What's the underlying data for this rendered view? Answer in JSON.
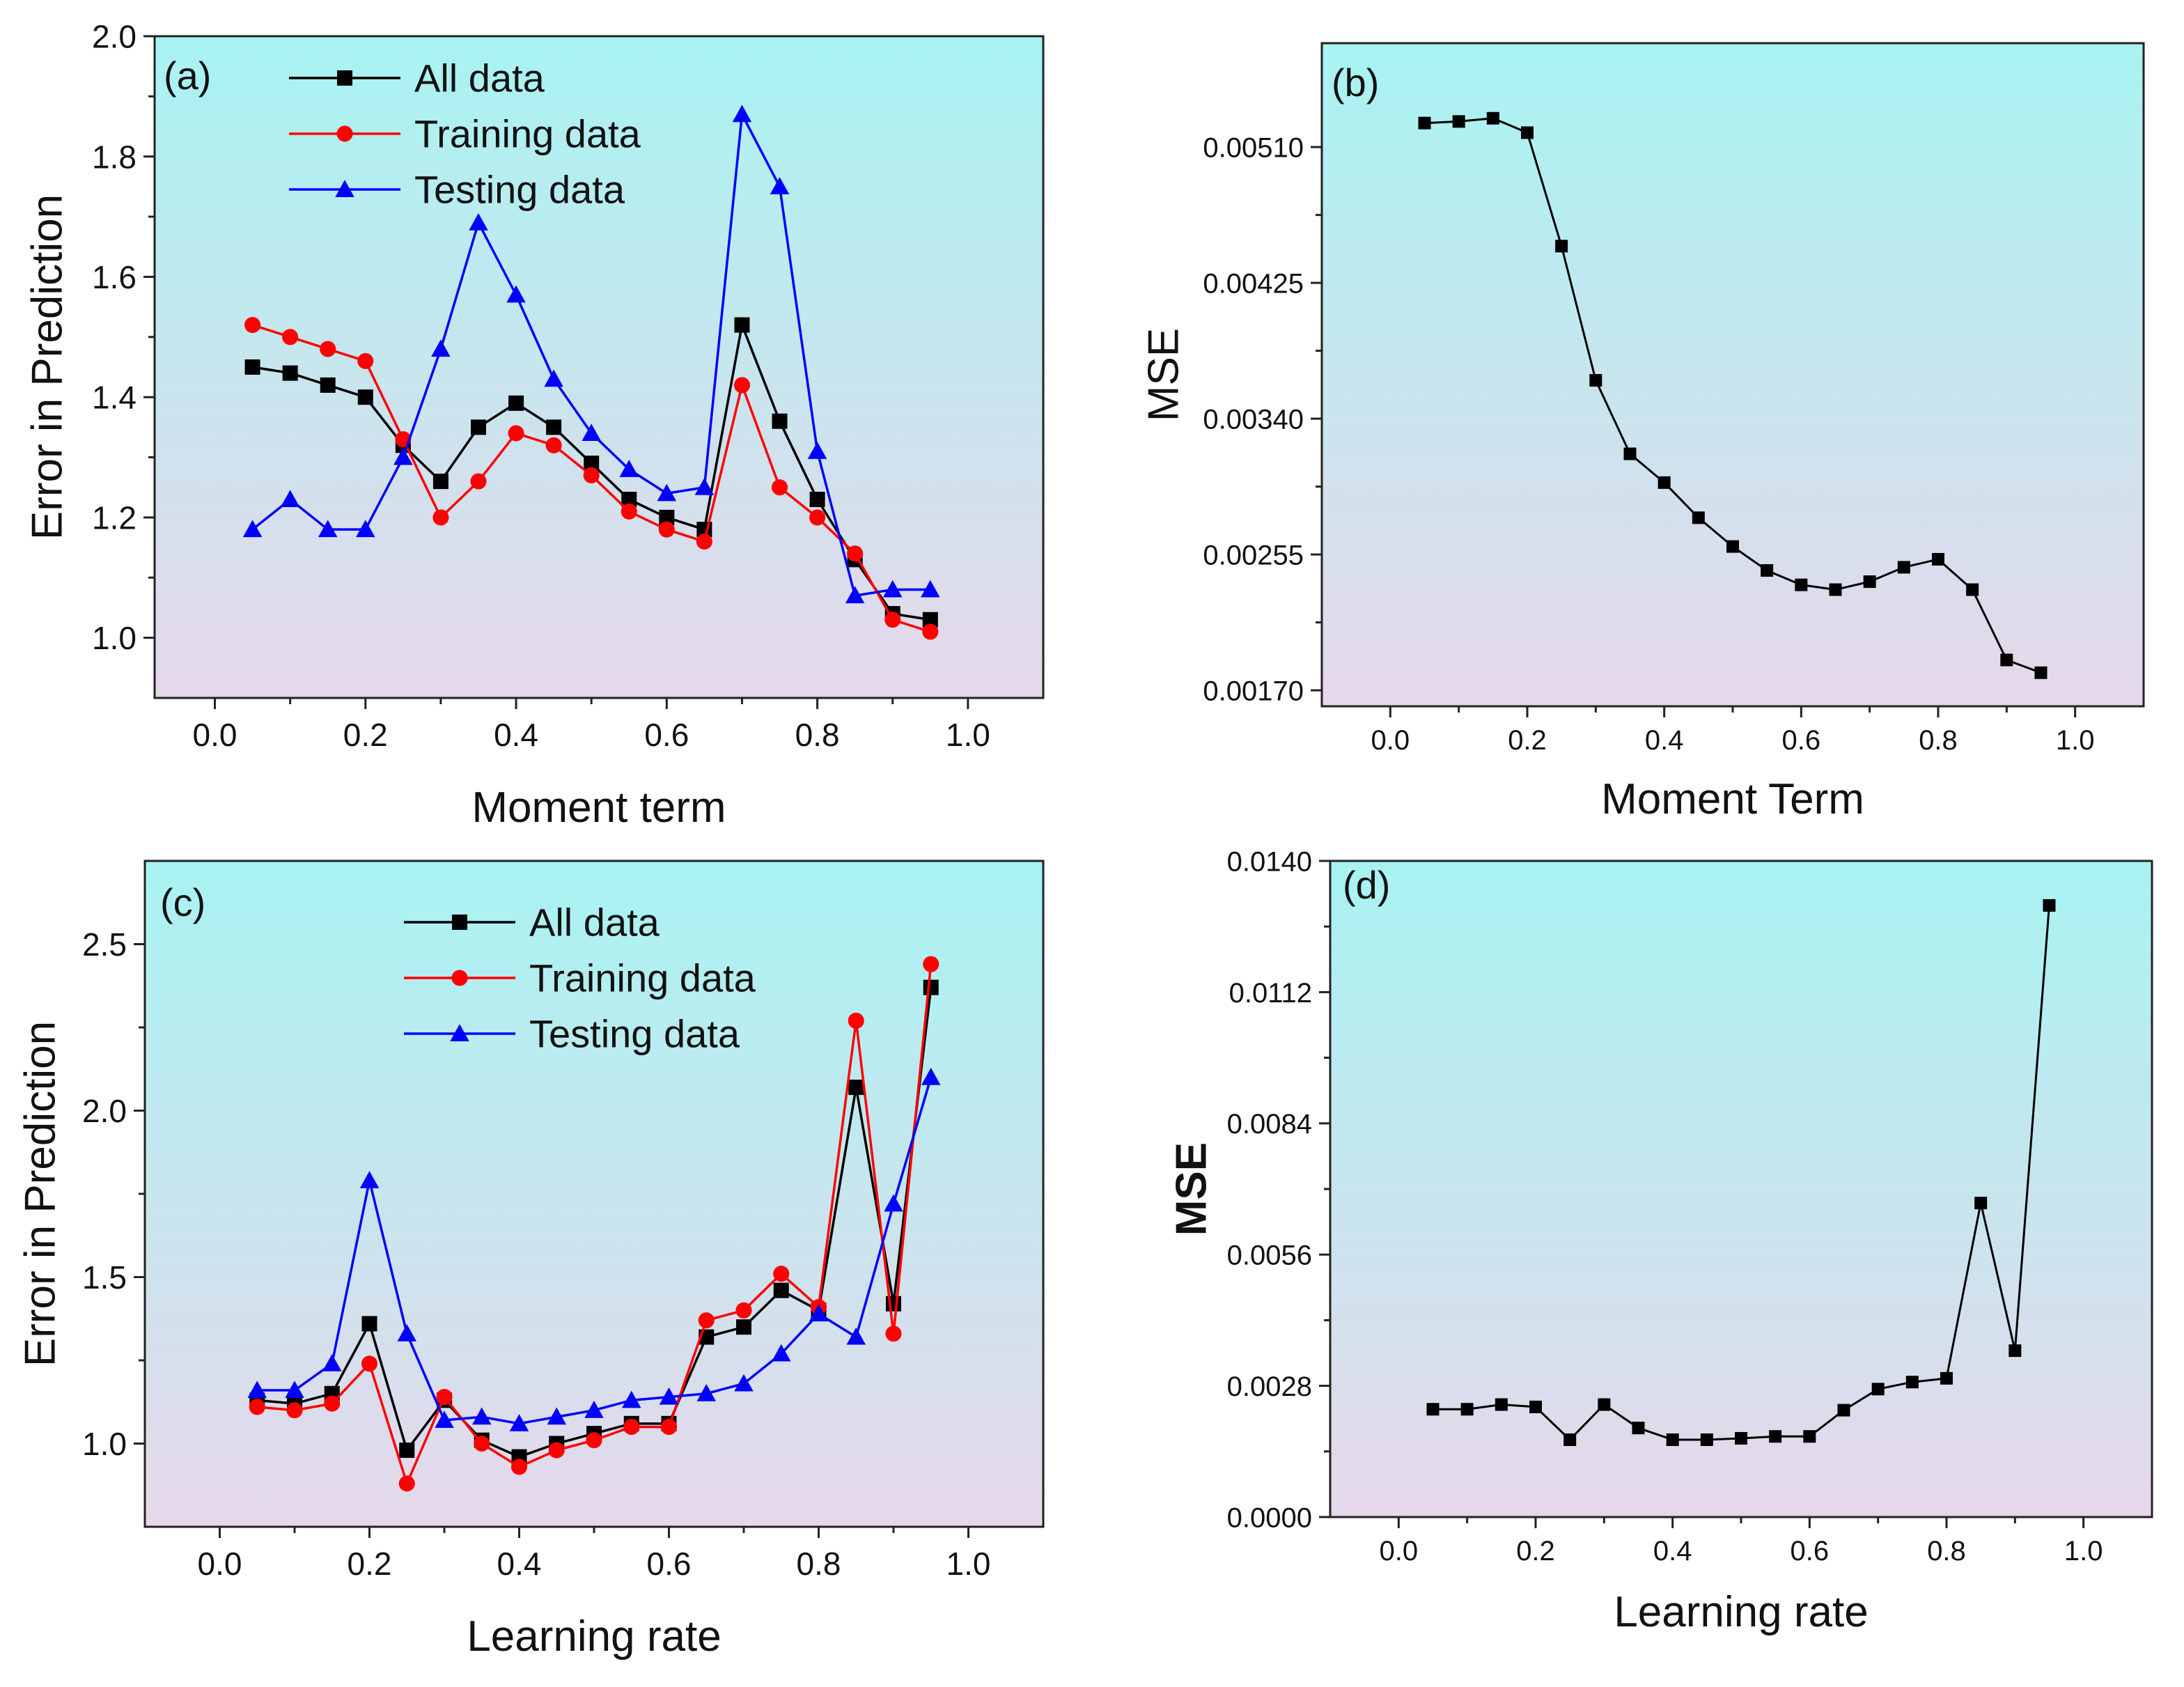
{
  "colors": {
    "bg_top": "#a8f3f2",
    "bg_bottom": "#e6d8ea",
    "all": "#000000",
    "train": "#ff0000",
    "test": "#0000ff"
  },
  "chart_data": [
    {
      "id": "a",
      "type": "line",
      "panel_label": "(a)",
      "xlabel": "Moment term",
      "ylabel": "Error in Prediction",
      "xlim": [
        -0.08,
        1.1
      ],
      "ylim": [
        0.9,
        2.0
      ],
      "xticks": [
        "0.0",
        "0.2",
        "0.4",
        "0.6",
        "0.8",
        "1.0"
      ],
      "yticks": [
        "1.0",
        "1.2",
        "1.4",
        "1.6",
        "1.8",
        "2.0"
      ],
      "legend_position": "top-center",
      "x": [
        0.05,
        0.1,
        0.15,
        0.2,
        0.25,
        0.3,
        0.35,
        0.4,
        0.45,
        0.5,
        0.55,
        0.6,
        0.65,
        0.7,
        0.75,
        0.8,
        0.85,
        0.9,
        0.95
      ],
      "series": [
        {
          "name": "All data",
          "color_key": "all",
          "marker": "square",
          "values": [
            1.45,
            1.44,
            1.42,
            1.4,
            1.32,
            1.26,
            1.35,
            1.39,
            1.35,
            1.29,
            1.23,
            1.2,
            1.18,
            1.52,
            1.36,
            1.23,
            1.13,
            1.04,
            1.03
          ]
        },
        {
          "name": "Training data",
          "color_key": "train",
          "marker": "circle",
          "values": [
            1.52,
            1.5,
            1.48,
            1.46,
            1.33,
            1.2,
            1.26,
            1.34,
            1.32,
            1.27,
            1.21,
            1.18,
            1.16,
            1.42,
            1.25,
            1.2,
            1.14,
            1.03,
            1.01
          ]
        },
        {
          "name": "Testing data",
          "color_key": "test",
          "marker": "triangle",
          "values": [
            1.18,
            1.23,
            1.18,
            1.18,
            1.3,
            1.48,
            1.69,
            1.57,
            1.43,
            1.34,
            1.28,
            1.24,
            1.25,
            1.87,
            1.75,
            1.31,
            1.07,
            1.08,
            1.08
          ]
        }
      ]
    },
    {
      "id": "b",
      "type": "line",
      "panel_label": "(b)",
      "xlabel": "Moment Term",
      "ylabel": "MSE",
      "xlim": [
        -0.1,
        1.1
      ],
      "ylim": [
        0.0016,
        0.00575
      ],
      "xticks": [
        "0.0",
        "0.2",
        "0.4",
        "0.6",
        "0.8",
        "1.0"
      ],
      "yticks": [
        "0.00170",
        "0.00255",
        "0.00340",
        "0.00425",
        "0.00510"
      ],
      "x": [
        0.05,
        0.1,
        0.15,
        0.2,
        0.25,
        0.3,
        0.35,
        0.4,
        0.45,
        0.5,
        0.55,
        0.6,
        0.65,
        0.7,
        0.75,
        0.8,
        0.85,
        0.9,
        0.95
      ],
      "series": [
        {
          "name": "MSE",
          "color_key": "all",
          "marker": "square",
          "values": [
            0.00525,
            0.00526,
            0.00528,
            0.00519,
            0.00448,
            0.00364,
            0.00318,
            0.003,
            0.00278,
            0.0026,
            0.00245,
            0.00236,
            0.00233,
            0.00238,
            0.00247,
            0.00252,
            0.00233,
            0.00189,
            0.00181
          ]
        }
      ]
    },
    {
      "id": "c",
      "type": "line",
      "panel_label": "(c)",
      "xlabel": "Learning rate",
      "ylabel": "Error in Prediction",
      "xlim": [
        -0.1,
        1.1
      ],
      "ylim": [
        0.75,
        2.75
      ],
      "xticks": [
        "0.0",
        "0.2",
        "0.4",
        "0.6",
        "0.8",
        "1.0"
      ],
      "yticks": [
        "1.0",
        "1.5",
        "2.0",
        "2.5"
      ],
      "legend_position": "top-center",
      "x": [
        0.05,
        0.1,
        0.15,
        0.2,
        0.25,
        0.3,
        0.35,
        0.4,
        0.45,
        0.5,
        0.55,
        0.6,
        0.65,
        0.7,
        0.75,
        0.8,
        0.85,
        0.9,
        0.95
      ],
      "series": [
        {
          "name": "All data",
          "color_key": "all",
          "marker": "square",
          "values": [
            1.13,
            1.12,
            1.15,
            1.36,
            0.98,
            1.13,
            1.01,
            0.96,
            1.0,
            1.03,
            1.06,
            1.06,
            1.32,
            1.35,
            1.46,
            1.4,
            2.07,
            1.42,
            2.37
          ]
        },
        {
          "name": "Training data",
          "color_key": "train",
          "marker": "circle",
          "values": [
            1.11,
            1.1,
            1.12,
            1.24,
            0.88,
            1.14,
            1.0,
            0.93,
            0.98,
            1.01,
            1.05,
            1.05,
            1.37,
            1.4,
            1.51,
            1.41,
            2.27,
            1.33,
            2.44
          ]
        },
        {
          "name": "Testing data",
          "color_key": "test",
          "marker": "triangle",
          "values": [
            1.16,
            1.16,
            1.24,
            1.79,
            1.33,
            1.07,
            1.08,
            1.06,
            1.08,
            1.1,
            1.13,
            1.14,
            1.15,
            1.18,
            1.27,
            1.39,
            1.32,
            1.72,
            2.1
          ]
        }
      ]
    },
    {
      "id": "d",
      "type": "line",
      "panel_label": "(d)",
      "xlabel": "Learning rate",
      "ylabel": "MSE",
      "xlim": [
        -0.1,
        1.1
      ],
      "ylim": [
        0.0,
        0.014
      ],
      "xticks": [
        "0.0",
        "0.2",
        "0.4",
        "0.6",
        "0.8",
        "1.0"
      ],
      "yticks": [
        "0.0000",
        "0.0028",
        "0.0056",
        "0.0084",
        "0.0112",
        "0.0140"
      ],
      "x": [
        0.05,
        0.1,
        0.15,
        0.2,
        0.25,
        0.3,
        0.35,
        0.4,
        0.45,
        0.5,
        0.55,
        0.6,
        0.65,
        0.7,
        0.75,
        0.8,
        0.85,
        0.9,
        0.95
      ],
      "series": [
        {
          "name": "MSE",
          "color_key": "all",
          "marker": "square",
          "values": [
            0.0023,
            0.0023,
            0.0024,
            0.00235,
            0.00165,
            0.0024,
            0.0019,
            0.00165,
            0.00165,
            0.00168,
            0.00172,
            0.00172,
            0.00228,
            0.00273,
            0.00288,
            0.00296,
            0.0067,
            0.00355,
            0.01305
          ]
        }
      ]
    }
  ]
}
